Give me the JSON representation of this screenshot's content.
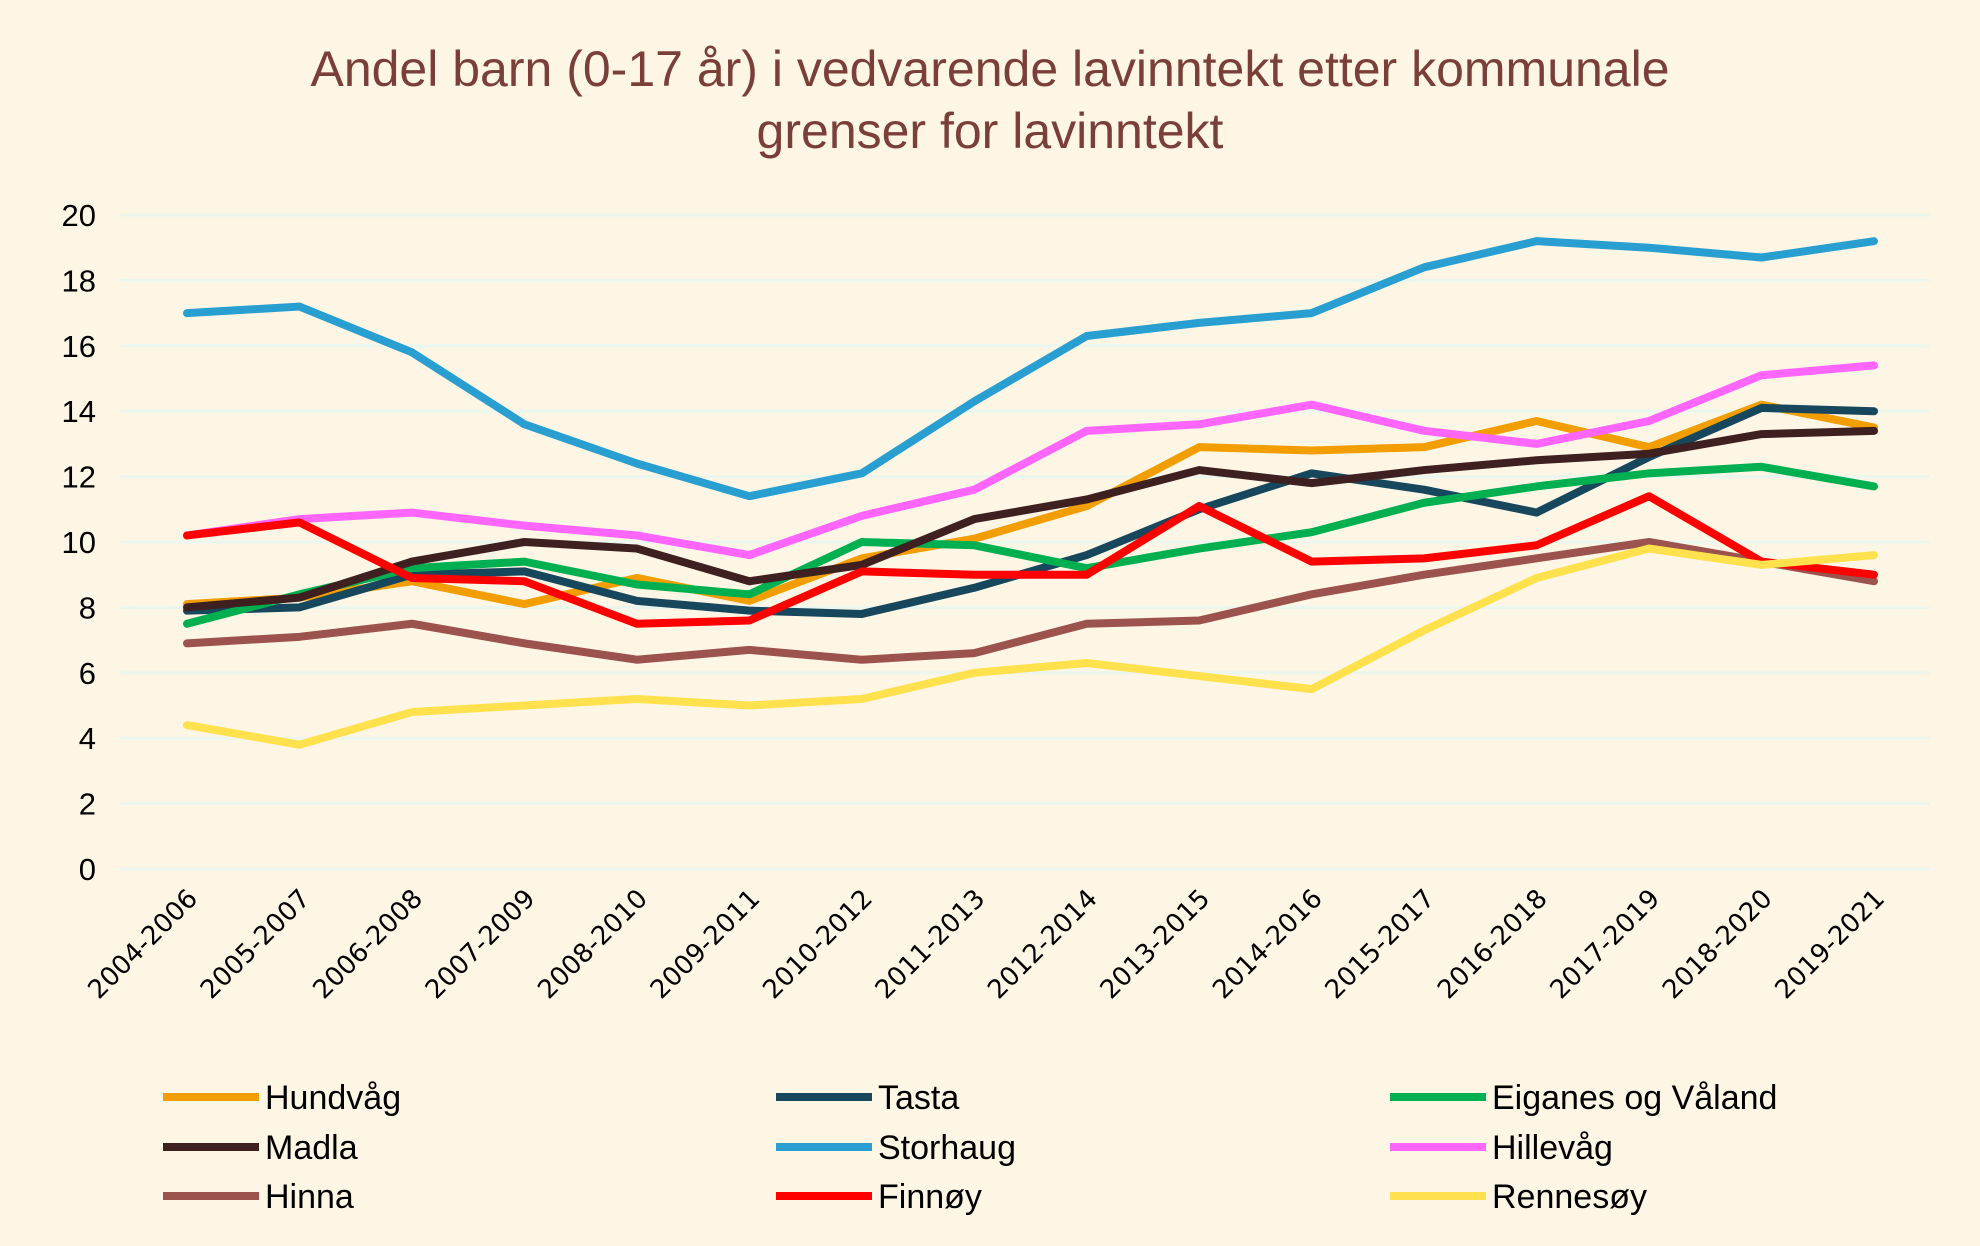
{
  "chart_data": {
    "type": "line",
    "title_lines": [
      "Andel barn (0-17 år) i vedvarende lavinntekt etter kommunale",
      "grenser for lavinntekt"
    ],
    "xlabel": "",
    "ylabel": "",
    "ylim": [
      0,
      20
    ],
    "yticks": [
      0,
      2,
      4,
      6,
      8,
      10,
      12,
      14,
      16,
      18,
      20
    ],
    "grid": true,
    "legend_position": "bottom",
    "categories": [
      "2004-2006",
      "2005-2007",
      "2006-2008",
      "2007-2009",
      "2008-2010",
      "2009-2011",
      "2010-2012",
      "2011-2013",
      "2012-2014",
      "2013-2015",
      "2014-2016",
      "2015-2017",
      "2016-2018",
      "2017-2019",
      "2018-2020",
      "2019-2021"
    ],
    "series": [
      {
        "name": "Hundvåg",
        "color": "#F29D00",
        "values": [
          8.1,
          8.3,
          8.8,
          8.1,
          8.9,
          8.2,
          9.5,
          10.1,
          11.1,
          12.9,
          12.8,
          12.9,
          13.7,
          12.9,
          14.2,
          13.5
        ]
      },
      {
        "name": "Tasta",
        "color": "#17475C",
        "values": [
          7.9,
          8.0,
          9.0,
          9.1,
          8.2,
          7.9,
          7.8,
          8.6,
          9.6,
          11.0,
          12.1,
          11.6,
          10.9,
          12.6,
          14.1,
          14.0
        ]
      },
      {
        "name": "Eiganes og Våland",
        "color": "#00B050",
        "values": [
          7.5,
          8.4,
          9.2,
          9.4,
          8.7,
          8.4,
          10.0,
          9.9,
          9.2,
          9.8,
          10.3,
          11.2,
          11.7,
          12.1,
          12.3,
          11.7
        ]
      },
      {
        "name": "Madla",
        "color": "#3F2020",
        "values": [
          8.0,
          8.3,
          9.4,
          10.0,
          9.8,
          8.8,
          9.3,
          10.7,
          11.3,
          12.2,
          11.8,
          12.2,
          12.5,
          12.7,
          13.3,
          13.4
        ]
      },
      {
        "name": "Storhaug",
        "color": "#289FD0",
        "values": [
          17.0,
          17.2,
          15.8,
          13.6,
          12.4,
          11.4,
          12.1,
          14.3,
          16.3,
          16.7,
          17.0,
          18.4,
          19.2,
          19.0,
          18.7,
          19.2
        ]
      },
      {
        "name": "Hillevåg",
        "color": "#FF66FF",
        "values": [
          10.2,
          10.7,
          10.9,
          10.5,
          10.2,
          9.6,
          10.8,
          11.6,
          13.4,
          13.6,
          14.2,
          13.4,
          13.0,
          13.7,
          15.1,
          15.4
        ]
      },
      {
        "name": "Hinna",
        "color": "#9C524D",
        "values": [
          6.9,
          7.1,
          7.5,
          6.9,
          6.4,
          6.7,
          6.4,
          6.6,
          7.5,
          7.6,
          8.4,
          9.0,
          9.5,
          10.0,
          9.4,
          8.8
        ]
      },
      {
        "name": "Finnøy",
        "color": "#FF0000",
        "values": [
          10.2,
          10.6,
          8.9,
          8.8,
          7.5,
          7.6,
          9.1,
          9.0,
          9.0,
          11.1,
          9.4,
          9.5,
          9.9,
          11.4,
          9.4,
          9.0
        ]
      },
      {
        "name": "Rennesøy",
        "color": "#FFE14D",
        "values": [
          4.4,
          3.8,
          4.8,
          5.0,
          5.2,
          5.0,
          5.2,
          6.0,
          6.3,
          5.9,
          5.5,
          7.3,
          8.9,
          9.8,
          9.3,
          9.6
        ]
      }
    ],
    "colors": {
      "background": "#FEF6E5",
      "title": "#7A3F39",
      "grid": "#EAF6EE",
      "text": "#000000"
    }
  }
}
